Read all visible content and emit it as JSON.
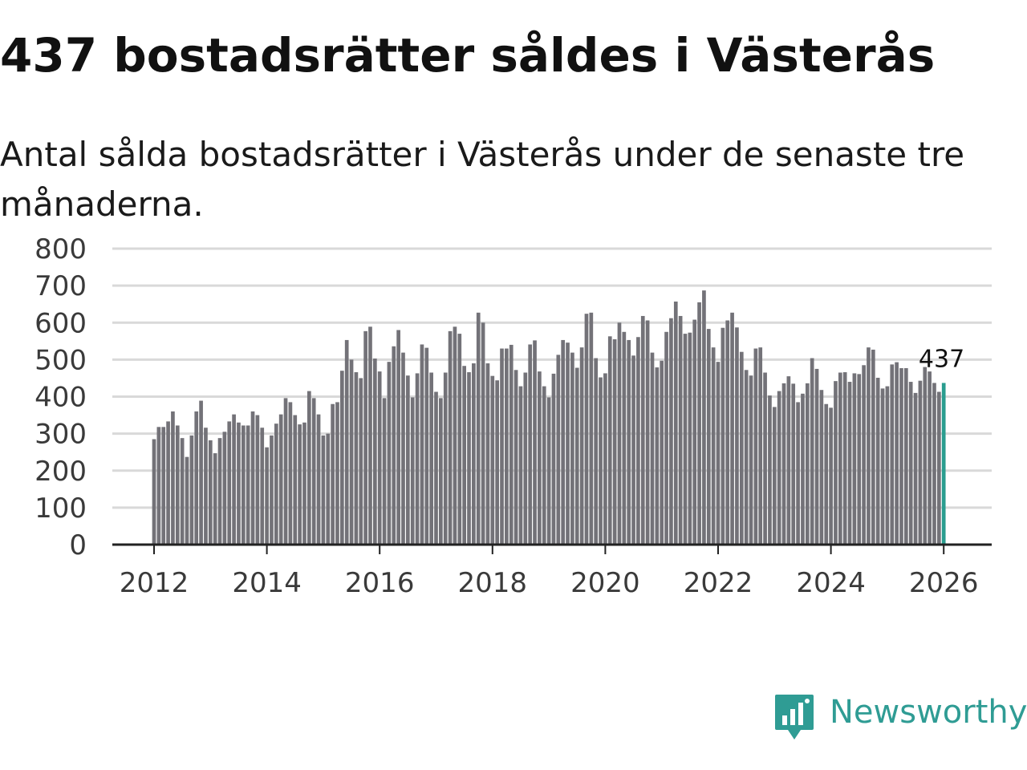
{
  "header": {
    "title": "437 bostadsrätter såldes i Västerås",
    "subtitle": "Antal sålda bostadsrätter i Västerås under de senaste tre månaderna."
  },
  "brand": {
    "name": "Newsworthy",
    "icon": "newsworthy-logo-icon",
    "color": "#2f9c94"
  },
  "colors": {
    "bar": "#737278",
    "highlight": "#2a9d8f",
    "grid": "#d9d9d9",
    "axis": "#222222"
  },
  "chart_data": {
    "type": "bar",
    "title": "437 bostadsrätter såldes i Västerås",
    "subtitle": "Antal sålda bostadsrätter i Västerås under de senaste tre månaderna.",
    "xlabel": "",
    "ylabel": "",
    "ylim": [
      0,
      800
    ],
    "yticks": [
      0,
      100,
      200,
      300,
      400,
      500,
      600,
      700,
      800
    ],
    "xticks": [
      "2012",
      "2014",
      "2016",
      "2018",
      "2020",
      "2022",
      "2024",
      "2026"
    ],
    "start_year": 2012,
    "interval": "monthly",
    "grid": true,
    "highlight_label": "437",
    "values": [
      285,
      318,
      318,
      333,
      360,
      322,
      288,
      237,
      295,
      360,
      389,
      316,
      282,
      247,
      288,
      305,
      333,
      352,
      330,
      322,
      322,
      360,
      350,
      316,
      263,
      295,
      327,
      352,
      396,
      385,
      350,
      325,
      330,
      415,
      396,
      352,
      295,
      300,
      380,
      385,
      470,
      553,
      500,
      466,
      450,
      577,
      589,
      503,
      468,
      396,
      494,
      536,
      580,
      519,
      457,
      398,
      463,
      541,
      532,
      465,
      413,
      396,
      465,
      577,
      589,
      570,
      483,
      466,
      490,
      627,
      600,
      490,
      456,
      444,
      530,
      530,
      540,
      472,
      428,
      465,
      541,
      552,
      468,
      428,
      398,
      462,
      513,
      553,
      546,
      519,
      478,
      533,
      624,
      627,
      504,
      452,
      463,
      563,
      555,
      600,
      575,
      553,
      511,
      561,
      618,
      606,
      519,
      479,
      497,
      575,
      612,
      657,
      618,
      570,
      573,
      608,
      655,
      687,
      583,
      533,
      494,
      586,
      606,
      627,
      587,
      521,
      472,
      457,
      530,
      533,
      465,
      403,
      372,
      415,
      436,
      455,
      435,
      385,
      408,
      436,
      504,
      475,
      418,
      380,
      370,
      442,
      465,
      466,
      440,
      463,
      461,
      485,
      533,
      527,
      451,
      422,
      428,
      487,
      493,
      477,
      477,
      440,
      410,
      443,
      480,
      468,
      437,
      413,
      437
    ]
  }
}
